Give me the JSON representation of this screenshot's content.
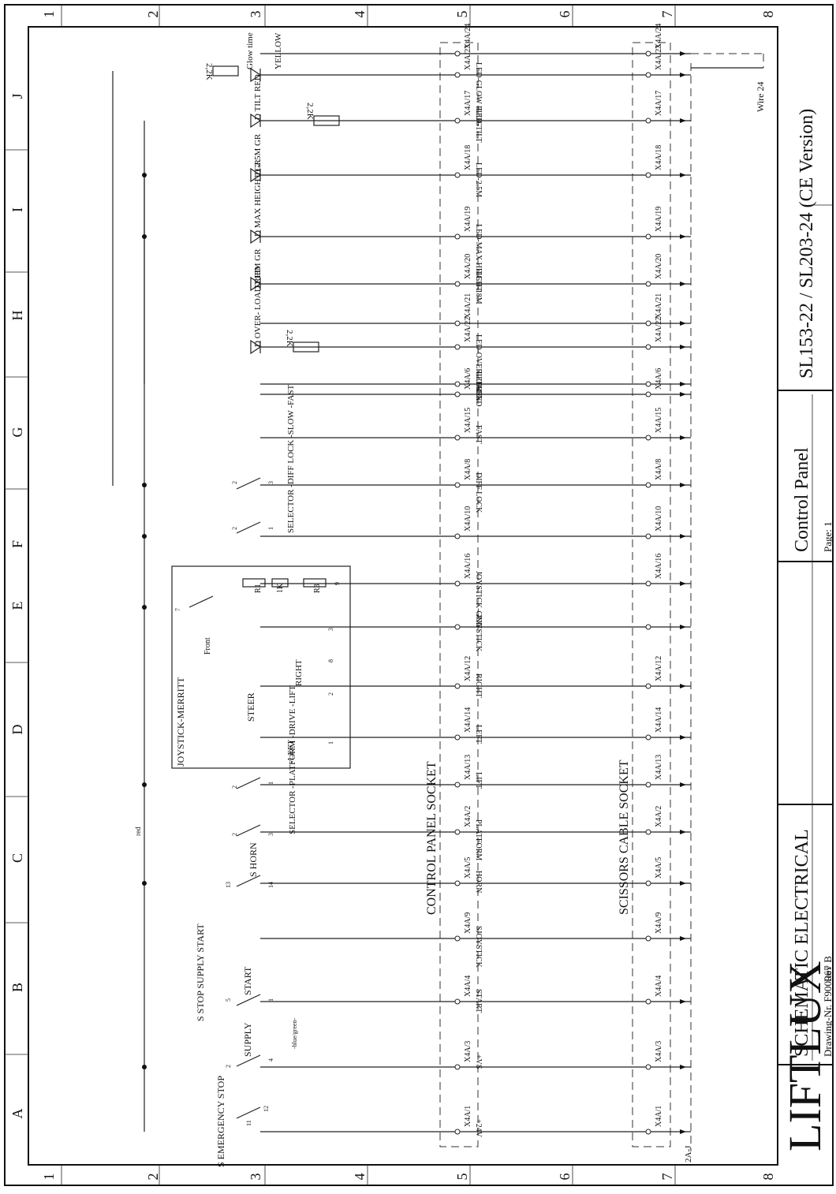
{
  "rotation_note_visible": "",
  "grid": {
    "numbers": [
      "1",
      "2",
      "3",
      "4",
      "5",
      "6",
      "7",
      "8"
    ],
    "letters": [
      "A",
      "B",
      "C",
      "D",
      "E",
      "F",
      "G",
      "H",
      "I",
      "J"
    ]
  },
  "title_block": {
    "company": "LIFTLUX",
    "rev": "Rev B",
    "drawing_type": "SCHEMATIC ELECTRICAL",
    "drawing_nr": "Drawing-Nr. F900067",
    "sheet_title": "Control Panel",
    "page": "Page: 1",
    "models": "SL153-22 / SL203-24 (CE Version)"
  },
  "sockets": {
    "control_panel": "CONTROL PANEL   SOCKET",
    "scissors_cable": "SCISSORS CABLE   SOCKET"
  },
  "wire_note": "Wire 24",
  "ref_2aj": "2A-J",
  "red_note": "red",
  "bluegreen_note": "-blue/green-",
  "pins": [
    {
      "pin": "X4A/1",
      "signal": "+24V"
    },
    {
      "pin": "X4A/3",
      "signal": "+VS"
    },
    {
      "pin": "X4A/4",
      "signal": "START"
    },
    {
      "pin": "X4A/9",
      "signal": "SJOYSTICK"
    },
    {
      "pin": "X4A/5",
      "signal": "HORN"
    },
    {
      "pin": "X4A/2",
      "signal": "PLATFORM"
    },
    {
      "pin": "X4A/13",
      "signal": "LIFT"
    },
    {
      "pin": "X4A/14",
      "signal": "LEFT"
    },
    {
      "pin": "X4A/12",
      "signal": "RIGHT"
    },
    {
      "pin": "",
      "signal": "JOYSTICK"
    },
    {
      "pin": "X4A/16",
      "signal": "JOYSTICK-GND"
    },
    {
      "pin": "X4A/10",
      "signal": ""
    },
    {
      "pin": "X4A/8",
      "signal": "DIFF LOCK"
    },
    {
      "pin": "X4A/15",
      "signal": "FAST"
    },
    {
      "pin": "X4A/6",
      "signal": "FREE"
    },
    {
      "pin": "",
      "signal": "LED-GND"
    },
    {
      "pin": "X4A/22",
      "signal": "LED-OVERLOAD"
    },
    {
      "pin": "X4A/21",
      "signal": ""
    },
    {
      "pin": "X4A/20",
      "signal": "LED-18M"
    },
    {
      "pin": "X4A/19",
      "signal": "LED-MAX HEIGHT"
    },
    {
      "pin": "X4A/18",
      "signal": "LED-2.5M"
    },
    {
      "pin": "X4A/17",
      "signal": "LED-TILT"
    },
    {
      "pin": "X4A/23",
      "signal": "LED-GLOW PLUG"
    },
    {
      "pin": "X4A/24",
      "signal": ""
    }
  ],
  "components": {
    "emergency_stop": "S EMERGENCY STOP",
    "stop_supply_start": "S STOP SUPPLY START",
    "supply": "SUPPLY",
    "start": "START",
    "horn": "S HORN",
    "selector_platform": "SELECTOR -PLATFORM -DRIVE -LIFT",
    "joystick": "JOYSTICK-MERRITT",
    "steer": "STEER",
    "left": "-LEFT",
    "right": "RIGHT",
    "front": "Front",
    "r1": "R1",
    "r3": "R3",
    "1k": "1K",
    "selector_diff": "SELECTOR -DIFF LOCK -SLOW -FAST",
    "d_overload": "D OVER- LOAD RED",
    "d_18m": "D 18M GR",
    "d_max": "D MAX HEIGHT GR",
    "d_25m": "D 2.5M GR",
    "d_tilt": "D TILT RED",
    "glow_time": "Glow time",
    "yellow": "YELLOW",
    "r_2k2": "2,2K"
  },
  "contacts": {
    "em_11": "11",
    "em_12": "12",
    "sup_2": "2",
    "sup_4": "4",
    "st_5": "5",
    "st_1": "1",
    "h_13": "13",
    "h_14": "14",
    "sel_2a": "2",
    "sel_3": "3",
    "sel_2b": "2",
    "sel_1": "1",
    "j_1": "1",
    "j_2": "2",
    "j_8": "8",
    "j_3": "3",
    "j_7": "7",
    "j_9": "9",
    "d_2a": "2",
    "d_1": "1",
    "d_2b": "2",
    "d_3": "3"
  }
}
